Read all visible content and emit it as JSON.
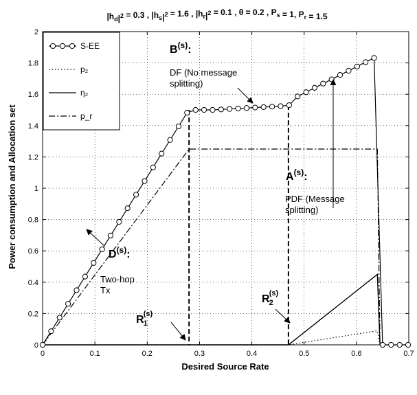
{
  "chart_data": {
    "type": "line",
    "title": "|h_d|² = 0.3 , |h_s|² = 1.6 , |h_r|² = 0.1 , θ = 0.2 , P_s = 1, P_r = 1.5",
    "xlabel": "Desired Source Rate",
    "ylabel": "Power consumption and Allocation set",
    "xlim": [
      0,
      0.7
    ],
    "ylim": [
      0,
      2
    ],
    "grid": true,
    "legend_position": "top-left",
    "xticks": [
      "0",
      "0.1",
      "0.2",
      "0.3",
      "0.4",
      "0.5",
      "0.6",
      "0.7"
    ],
    "yticks": [
      "0",
      "0.2",
      "0.4",
      "0.6",
      "0.8",
      "1",
      "1.2",
      "1.4",
      "1.6",
      "1.8",
      "2"
    ],
    "series": [
      {
        "name": "S-EE",
        "style": "solid-circles",
        "x": [
          0,
          0.01625,
          0.0325,
          0.04875,
          0.065,
          0.08125,
          0.0975,
          0.11375,
          0.13,
          0.14625,
          0.1625,
          0.17875,
          0.195,
          0.21125,
          0.2275,
          0.24375,
          0.26,
          0.27625,
          0.2925,
          0.30875,
          0.325,
          0.34125,
          0.3575,
          0.37375,
          0.39,
          0.40625,
          0.4225,
          0.43875,
          0.455,
          0.47125,
          0.4875,
          0.50375,
          0.52,
          0.53625,
          0.5525,
          0.56875,
          0.585,
          0.60125,
          0.6175,
          0.63375,
          0.65,
          0.66625,
          0.6825,
          0.69875
        ],
        "y": [
          0,
          0.087,
          0.174,
          0.262,
          0.349,
          0.436,
          0.523,
          0.61,
          0.698,
          0.785,
          0.872,
          0.959,
          1.046,
          1.133,
          1.221,
          1.308,
          1.395,
          1.482,
          1.5,
          1.5,
          1.5,
          1.503,
          1.506,
          1.509,
          1.512,
          1.515,
          1.518,
          1.521,
          1.524,
          1.53,
          1.586,
          1.613,
          1.641,
          1.668,
          1.695,
          1.723,
          1.75,
          1.777,
          1.805,
          1.832,
          0,
          0,
          0,
          0
        ]
      },
      {
        "name": "p₂",
        "style": "dotted",
        "x": [
          0,
          0.47,
          0.64,
          0.645
        ],
        "y": [
          0,
          0,
          0.09,
          0
        ]
      },
      {
        "name": "η₂",
        "style": "solid",
        "x": [
          0,
          0.47,
          0.64,
          0.645
        ],
        "y": [
          0,
          0,
          0.45,
          0
        ]
      },
      {
        "name": "p_r",
        "style": "dash-dot",
        "x": [
          0,
          0.28,
          0.64,
          0.645
        ],
        "y": [
          0,
          1.25,
          1.25,
          0
        ]
      }
    ],
    "vlines": [
      {
        "x": 0.28,
        "y_top": 1.5
      },
      {
        "x": 0.47,
        "y_top": 1.53
      }
    ],
    "annotations": [
      {
        "id": "B",
        "letter": "B",
        "sup": "(s)",
        "colon": ":",
        "lines": [
          "DF (No message",
          "splitting)"
        ]
      },
      {
        "id": "A",
        "letter": "A",
        "sup": "(s)",
        "colon": ":",
        "lines": [
          "PDF (Message",
          "splitting)"
        ]
      },
      {
        "id": "D",
        "letter": "D",
        "sup": "(s)",
        "colon": ":",
        "lines": [
          "Two-hop",
          "Tx"
        ]
      },
      {
        "id": "R1",
        "letter": "R",
        "sub": "1",
        "sup": "(s)",
        "colon": "",
        "lines": []
      },
      {
        "id": "R2",
        "letter": "R",
        "sub": "2",
        "sup": "(s)",
        "colon": "",
        "lines": []
      }
    ]
  }
}
